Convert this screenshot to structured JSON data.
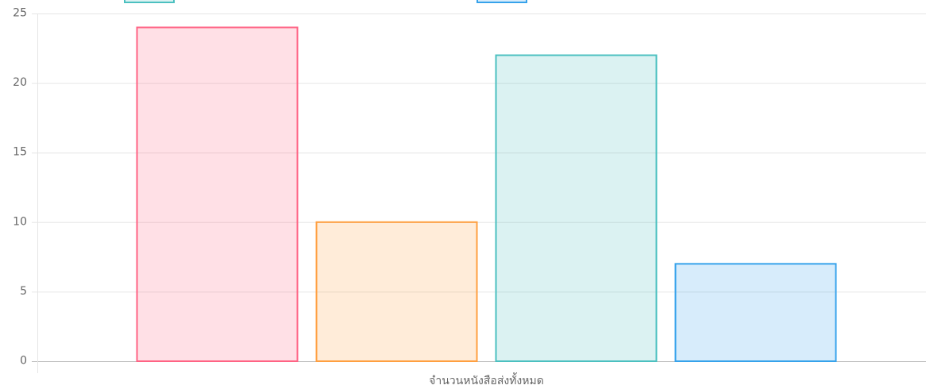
{
  "chart_data": {
    "type": "bar",
    "categories": [
      "จำนวนหนังสือส่งทั้งหมด"
    ],
    "series": [
      {
        "color": "rgb(255, 99, 132)",
        "values": [
          24
        ]
      },
      {
        "color": "rgb(255, 159, 64)",
        "values": [
          10
        ]
      },
      {
        "color": "rgb(75, 192, 192)",
        "values": [
          22
        ]
      },
      {
        "color": "rgb(54, 162, 235)",
        "values": [
          7
        ]
      }
    ],
    "ylim": [
      0,
      25
    ],
    "yticks": [
      0,
      5,
      10,
      15,
      20,
      25
    ],
    "grid": true
  }
}
